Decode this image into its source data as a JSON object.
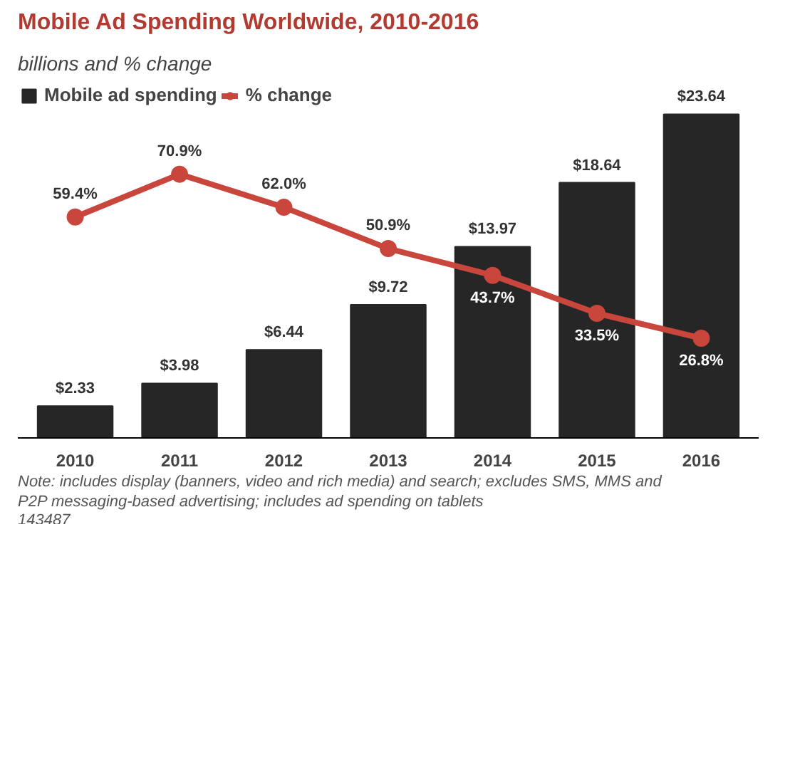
{
  "chart_data": {
    "type": "bar",
    "title": "Mobile Ad Spending Worldwide, 2010-2016",
    "subtitle": "billions and % change",
    "categories": [
      "2010",
      "2011",
      "2012",
      "2013",
      "2014",
      "2015",
      "2016"
    ],
    "series": [
      {
        "name": "Mobile ad spending",
        "color": "#262626",
        "values": [
          2.33,
          3.98,
          6.44,
          9.72,
          13.97,
          18.64,
          23.64
        ],
        "value_labels": [
          "$2.33",
          "$3.98",
          "$6.44",
          "$9.72",
          "$13.97",
          "$18.64",
          "$23.64"
        ]
      },
      {
        "name": "% change",
        "type": "line",
        "axis": "y2",
        "color": "#c9463d",
        "marker": "circle",
        "values": [
          59.4,
          70.9,
          62.0,
          50.9,
          43.7,
          33.5,
          26.8
        ],
        "value_labels": [
          "59.4%",
          "70.9%",
          "62.0%",
          "50.9%",
          "43.7%",
          "33.5%",
          "26.8%"
        ]
      }
    ],
    "legend": "top left",
    "grid": false,
    "annotations": [
      "Note: includes display (banners, video and rich media) and search; excludes SMS, MMS and P2P messaging-based advertising; includes ad spending on tablets",
      "143487"
    ]
  }
}
